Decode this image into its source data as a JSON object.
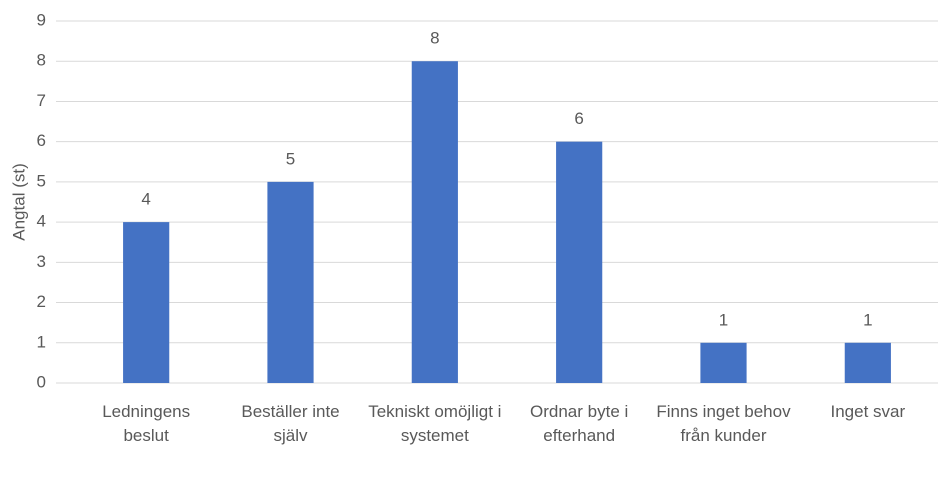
{
  "chart_data": {
    "type": "bar",
    "y_label": "Angtal (st)",
    "categories": [
      "Ledningens beslut",
      "Beställer inte själv",
      "Tekniskt omöjligt i systemet",
      "Ordnar byte i efterhand",
      "Finns inget behov från kunder",
      "Inget svar"
    ],
    "values": [
      4,
      5,
      8,
      6,
      1,
      1
    ],
    "color": "#4472c4",
    "ylim": [
      0,
      9
    ],
    "yticks": [
      0,
      1,
      2,
      3,
      4,
      5,
      6,
      7,
      8,
      9
    ],
    "grid": true
  }
}
